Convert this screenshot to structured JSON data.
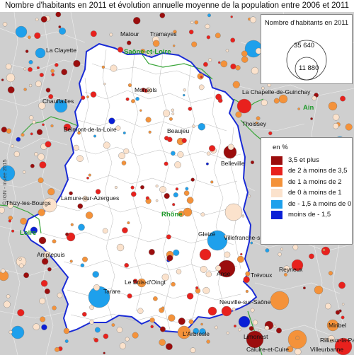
{
  "title": "Nombre d'habitants en 2011 et évolution annuelle moyenne de la population entre 2006 et 2011",
  "copyright": "© IGN - Insee 2015",
  "size_legend": {
    "title": "Nombre d'habitants en 2011",
    "large_value": "35 640",
    "small_value": "11 880"
  },
  "color_legend": {
    "unit": "en %",
    "classes": [
      {
        "label": "3,5 et plus",
        "color": "#9b0d0d"
      },
      {
        "label": "de 2 à moins de 3,5",
        "color": "#e8211d"
      },
      {
        "label": "de 1 à moins de 2",
        "color": "#f4923a"
      },
      {
        "label": "de 0 à moins de 1",
        "color": "#fbe2cc"
      },
      {
        "label": "de - 1,5 à moins de 0",
        "color": "#1ea0ec"
      },
      {
        "label": "moins de - 1,5",
        "color": "#0a1fd6"
      }
    ]
  },
  "colors": {
    "background_outside": "#cfcfcf",
    "study_area": "#ffffff",
    "boundary": "#1a2bd6",
    "region_border": "#3aa63a"
  },
  "place_labels": [
    "Matour",
    "Tramayes",
    "La Clayette",
    "Monsols",
    "La Chapelle-de-Guinchay",
    "Chauffailles",
    "Thoissey",
    "Belmont-de-la-Loire",
    "Beaujeu",
    "Belleville",
    "Thizy-les-Bourgs",
    "Lamure-sur-Azergues",
    "Amplepuis",
    "Gleizé",
    "Villefranche-sur-Saône",
    "Anse",
    "Trévoux",
    "Reyrieux",
    "Tarare",
    "Le Bois-d'Oingt",
    "Neuville-sur-Saône",
    "L'Arbresle",
    "Limonest",
    "Miribel",
    "Rillieux-la-Pape",
    "Caluire-et-Cuire",
    "Villeurbanne"
  ],
  "region_labels": [
    "Saône-et-Loire",
    "Ain",
    "Rhône",
    "Loire"
  ]
}
